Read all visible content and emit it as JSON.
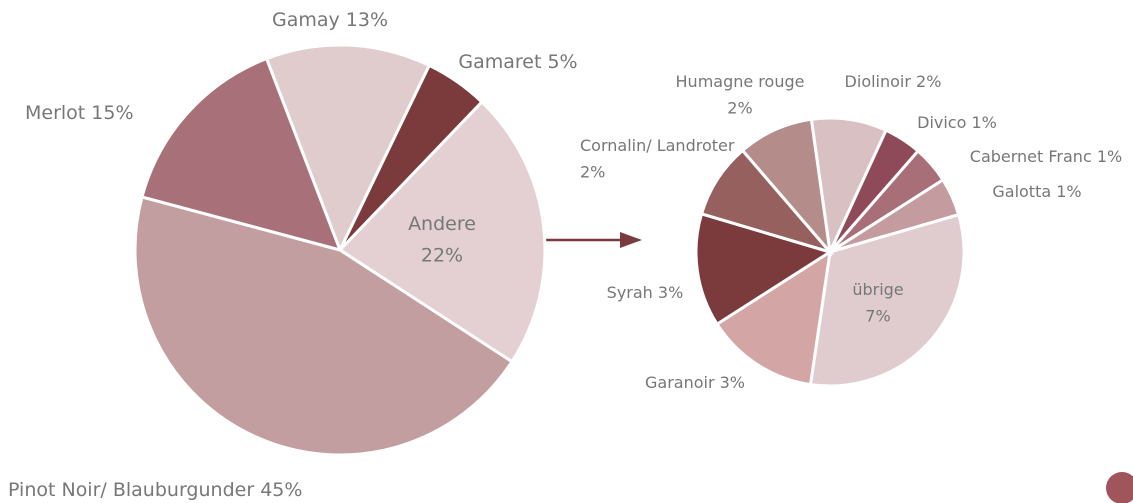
{
  "chart_data": [
    {
      "type": "pie",
      "categories": [
        "Gamay",
        "Gamaret",
        "Andere",
        "Pinot Noir/ Blauburgunder",
        "Merlot"
      ],
      "values": [
        13,
        5,
        22,
        45,
        15
      ],
      "value_labels": [
        "13%",
        "5%",
        "22%",
        "45%",
        "15%"
      ],
      "colors": [
        "#e0cccd",
        "#7b3a3c",
        "#e4d0d2",
        "#c29ea1",
        "#a87078"
      ]
    },
    {
      "type": "pie",
      "categories": [
        "Diolinoir",
        "Divico",
        "Cabernet Franc",
        "Galotta",
        "übrige",
        "Garanoir",
        "Syrah",
        "Cornalin/ Landroter",
        "Humagne rouge"
      ],
      "values": [
        2,
        1,
        1,
        1,
        7,
        3,
        3,
        2,
        2
      ],
      "value_labels": [
        "2%",
        "1%",
        "1%",
        "1%",
        "7%",
        "3%",
        "3%",
        "2%",
        "2%"
      ],
      "colors": [
        "#d9c1c3",
        "#8e4a58",
        "#a86f78",
        "#c49ca0",
        "#e0ccce",
        "#d4a5a5",
        "#7b3a3c",
        "#96605e",
        "#b48c8a"
      ]
    }
  ]
}
